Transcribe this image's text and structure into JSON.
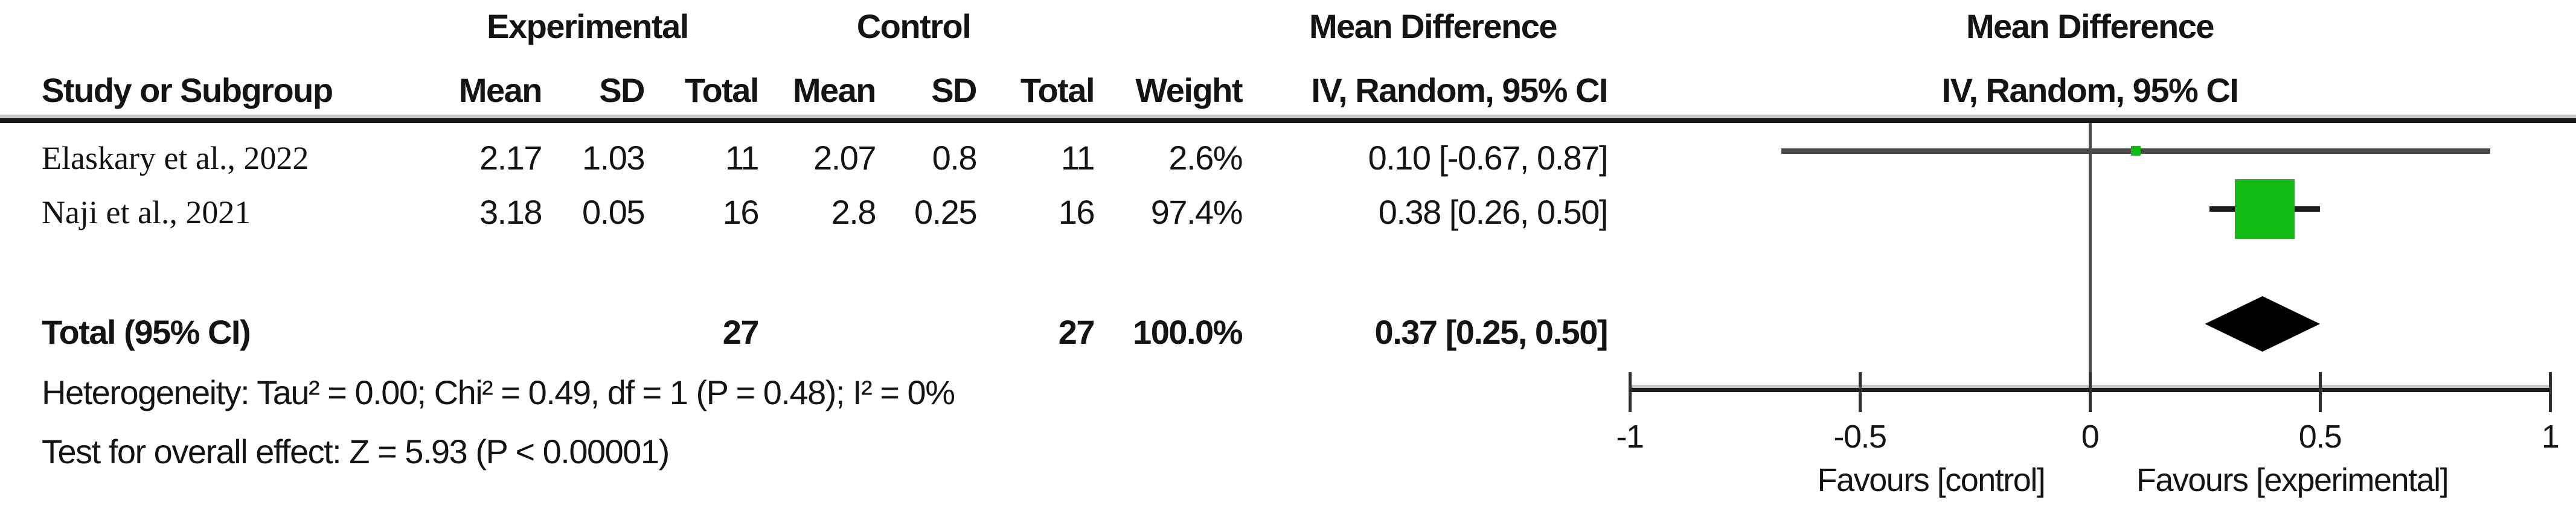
{
  "table": {
    "group_headers": {
      "experimental": "Experimental",
      "control": "Control",
      "mean_difference_left": "Mean Difference",
      "mean_difference_right": "Mean Difference"
    },
    "col_headers": {
      "study": "Study or Subgroup",
      "mean": "Mean",
      "sd": "SD",
      "total": "Total",
      "weight": "Weight",
      "iv_random": "IV, Random, 95% CI"
    },
    "studies": [
      {
        "name": "Elaskary et al., 2022",
        "mean_e": "2.17",
        "sd_e": "1.03",
        "total_e": "11",
        "mean_c": "2.07",
        "sd_c": "0.8",
        "total_c": "11",
        "weight": "2.6%",
        "ci_text": "0.10 [-0.67, 0.87]"
      },
      {
        "name": "Naji et al., 2021",
        "mean_e": "3.18",
        "sd_e": "0.05",
        "total_e": "16",
        "mean_c": "2.8",
        "sd_c": "0.25",
        "total_c": "16",
        "weight": "97.4%",
        "ci_text": "0.38 [0.26, 0.50]"
      }
    ],
    "total_row": {
      "label": "Total (95% CI)",
      "total_e": "27",
      "total_c": "27",
      "weight": "100.0%",
      "ci_text": "0.37 [0.25, 0.50]"
    },
    "heterogeneity": "Heterogeneity: Tau² = 0.00; Chi² = 0.49, df = 1 (P = 0.48); I² = 0%",
    "overall_effect": "Test for overall effect: Z = 5.93 (P < 0.00001)"
  },
  "chart_data": {
    "type": "forest",
    "effect_measure": "Mean Difference",
    "method": "IV, Random, 95% CI",
    "x_axis": {
      "min": -1,
      "max": 1,
      "ticks": [
        -1,
        -0.5,
        0,
        0.5,
        1
      ],
      "tick_labels": [
        "-1",
        "-0.5",
        "0",
        "0.5",
        "1"
      ]
    },
    "studies": [
      {
        "name": "Elaskary et al., 2022",
        "estimate": 0.1,
        "ci_low": -0.67,
        "ci_high": 0.87,
        "weight_pct": 2.6
      },
      {
        "name": "Naji et al., 2021",
        "estimate": 0.38,
        "ci_low": 0.26,
        "ci_high": 0.5,
        "weight_pct": 97.4
      }
    ],
    "total": {
      "estimate": 0.37,
      "ci_low": 0.25,
      "ci_high": 0.5
    },
    "favours_left": "Favours [control]",
    "favours_right": "Favours [experimental]",
    "marker_color": "#13ba13",
    "ci_line_color_light": "#4a4a4a",
    "ci_line_color_dark": "#1a1a1a",
    "diamond_color": "#000000",
    "zero_line_color": "#4d4d4d",
    "axis_color": "#1b1b1b"
  }
}
